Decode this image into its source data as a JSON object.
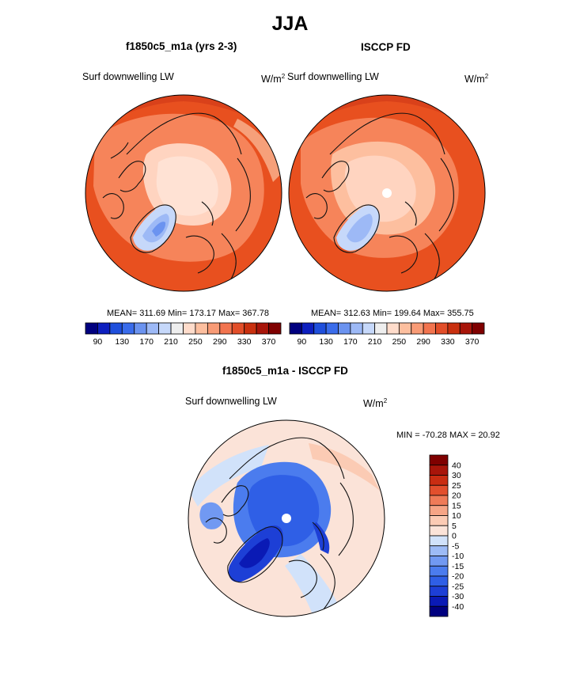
{
  "figure": {
    "title": "JJA",
    "colors": {
      "ocean_cold": "#ffcfb8",
      "land_warm": "#f25a2a",
      "deep_warm": "#e03c14",
      "ice_blue": "#4f86ea",
      "pole_marker": "#ffffff"
    }
  },
  "panels": [
    {
      "title": "f1850c5_m1a (yrs 2-3)",
      "variable": "Surf downwelling LW",
      "units_base": "W/m",
      "units_exp": "2",
      "stats": "MEAN= 311.69  Min= 173.17  Max= 367.78"
    },
    {
      "title": "ISCCP FD",
      "variable": "Surf downwelling LW",
      "units_base": "W/m",
      "units_exp": "2",
      "stats": "MEAN= 312.63  Min= 199.64  Max= 355.75"
    },
    {
      "title": "f1850c5_m1a - ISCCP FD",
      "variable": "Surf downwelling LW",
      "units_base": "W/m",
      "units_exp": "2",
      "stats": "MIN = -70.28 MAX =  20.92"
    }
  ],
  "chart_data": [
    {
      "type": "heatmap",
      "projection": "polar-stereographic north",
      "title": "f1850c5_m1a (yrs 2-3)",
      "colorbar": {
        "orientation": "horizontal",
        "levels": [
          90,
          110,
          130,
          150,
          170,
          190,
          210,
          230,
          250,
          270,
          290,
          310,
          330,
          350,
          370
        ],
        "tick_labels": [
          "90",
          "130",
          "170",
          "210",
          "250",
          "290",
          "330",
          "370"
        ],
        "colors": [
          "#00007f",
          "#0d1fbf",
          "#1f4fdc",
          "#3a6ceb",
          "#6b93f0",
          "#9db9f6",
          "#c6d8fa",
          "#eeeeee",
          "#ffdccb",
          "#fdbf9f",
          "#f89b76",
          "#f2744f",
          "#e24e29",
          "#c9300f",
          "#a8150a",
          "#7f0000"
        ]
      },
      "mean": 311.69,
      "min": 173.17,
      "max": 367.78
    },
    {
      "type": "heatmap",
      "projection": "polar-stereographic north",
      "title": "ISCCP FD",
      "colorbar": {
        "orientation": "horizontal",
        "levels": [
          90,
          110,
          130,
          150,
          170,
          190,
          210,
          230,
          250,
          270,
          290,
          310,
          330,
          350,
          370
        ],
        "tick_labels": [
          "90",
          "130",
          "170",
          "210",
          "250",
          "290",
          "330",
          "370"
        ],
        "colors": [
          "#00007f",
          "#0d1fbf",
          "#1f4fdc",
          "#3a6ceb",
          "#6b93f0",
          "#9db9f6",
          "#c6d8fa",
          "#eeeeee",
          "#ffdccb",
          "#fdbf9f",
          "#f89b76",
          "#f2744f",
          "#e24e29",
          "#c9300f",
          "#a8150a",
          "#7f0000"
        ]
      },
      "mean": 312.63,
      "min": 199.64,
      "max": 355.75
    },
    {
      "type": "heatmap",
      "projection": "polar-stereographic north",
      "title": "f1850c5_m1a - ISCCP FD",
      "colorbar": {
        "orientation": "vertical",
        "levels": [
          -40,
          -30,
          -25,
          -20,
          -15,
          -10,
          -5,
          0,
          5,
          10,
          15,
          20,
          25,
          30,
          40
        ],
        "tick_labels": [
          "40",
          "30",
          "25",
          "20",
          "15",
          "10",
          "5",
          "0",
          "-5",
          "-10",
          "-15",
          "-20",
          "-25",
          "-30",
          "-40"
        ],
        "colors": [
          "#00007f",
          "#0a1ab5",
          "#1d3fd6",
          "#2f5fe6",
          "#4b7cee",
          "#7199f2",
          "#9dbbf6",
          "#d1e2fa",
          "#fbe3d8",
          "#fbcbb4",
          "#f6a586",
          "#ef7b58",
          "#e24f2d",
          "#c92d12",
          "#a8150a",
          "#7f0000"
        ]
      },
      "min": -70.28,
      "max": 20.92
    }
  ]
}
